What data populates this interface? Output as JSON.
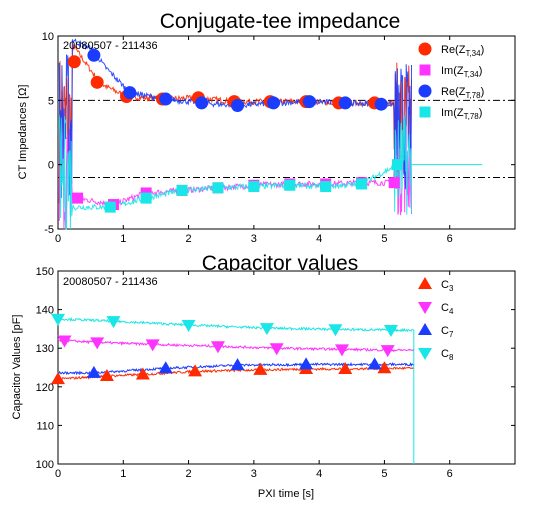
{
  "colors": {
    "red": "#ff2a00",
    "magenta": "#ff33ff",
    "blue": "#1a3cff",
    "cyan": "#19e6e6"
  },
  "chart_data": [
    {
      "type": "line",
      "title": "Conjugate-tee impedance",
      "annotation": "20080507 - 211436",
      "xlabel": "",
      "ylabel": "CT Impedances [Ω]",
      "xlim": [
        0,
        7
      ],
      "ylim": [
        -5,
        10
      ],
      "xticks": [
        "0",
        "1",
        "2",
        "3",
        "4",
        "5",
        "6"
      ],
      "yticks": [
        "-5",
        "0",
        "5",
        "10"
      ],
      "reference_lines": [
        5,
        -1
      ],
      "legend_position": "top-right",
      "series": [
        {
          "name": "Re(Z",
          "sub": "T,34",
          "close": ")",
          "color": "red",
          "marker": "circle",
          "x": [
            0.25,
            0.6,
            1.05,
            1.6,
            2.15,
            2.7,
            3.25,
            3.8,
            4.3,
            4.85
          ],
          "y": [
            8.0,
            6.4,
            5.3,
            5.1,
            5.2,
            4.9,
            4.9,
            4.9,
            4.8,
            4.8
          ]
        },
        {
          "name": "Im(Z",
          "sub": "T,34",
          "close": ")",
          "color": "magenta",
          "marker": "square",
          "x": [
            0.3,
            0.85,
            1.35,
            1.9,
            2.45,
            3.0,
            3.55,
            4.1,
            4.65,
            5.15
          ],
          "y": [
            -2.6,
            -3.1,
            -2.2,
            -2.0,
            -1.8,
            -1.6,
            -1.5,
            -1.5,
            -1.4,
            -1.4
          ]
        },
        {
          "name": "Re(Z",
          "sub": "T,78",
          "close": ")",
          "color": "blue",
          "marker": "circle",
          "x": [
            0.55,
            1.1,
            1.65,
            2.2,
            2.75,
            3.3,
            3.85,
            4.4,
            4.95
          ],
          "y": [
            8.5,
            5.6,
            5.1,
            4.8,
            4.6,
            4.8,
            4.9,
            4.8,
            4.7
          ]
        },
        {
          "name": "Im(Z",
          "sub": "T,78",
          "close": ")",
          "color": "cyan",
          "marker": "square",
          "x": [
            0.8,
            1.35,
            1.9,
            2.45,
            3.0,
            3.55,
            4.1,
            4.65,
            5.2
          ],
          "y": [
            -3.3,
            -2.6,
            -2.0,
            -1.8,
            -1.7,
            -1.6,
            -1.7,
            -1.5,
            0.0
          ]
        }
      ]
    },
    {
      "type": "line",
      "title": "Capacitor values",
      "annotation": "20080507 - 211436",
      "xlabel": "PXI time [s]",
      "ylabel": "Capacitor Values [pF]",
      "xlim": [
        0,
        7
      ],
      "ylim": [
        100,
        150
      ],
      "xticks": [
        "0",
        "1",
        "2",
        "3",
        "4",
        "5",
        "6"
      ],
      "yticks": [
        "100",
        "110",
        "120",
        "130",
        "140",
        "150"
      ],
      "legend_position": "top-right",
      "series": [
        {
          "name": "C",
          "sub": "3",
          "color": "red",
          "marker": "triangle-up",
          "x": [
            0.0,
            0.75,
            1.3,
            2.1,
            3.1,
            3.8,
            4.4,
            5.0
          ],
          "y": [
            122.0,
            122.8,
            123.2,
            124.0,
            124.4,
            124.6,
            124.6,
            124.8
          ]
        },
        {
          "name": "C",
          "sub": "4",
          "color": "magenta",
          "marker": "triangle-down",
          "x": [
            0.1,
            0.6,
            1.45,
            2.45,
            3.35,
            4.35,
            5.05
          ],
          "y": [
            132.0,
            131.5,
            131.0,
            130.5,
            130.0,
            129.7,
            129.5
          ]
        },
        {
          "name": "C",
          "sub": "7",
          "color": "blue",
          "marker": "triangle-up",
          "x": [
            0.55,
            1.65,
            2.75,
            3.8,
            4.85
          ],
          "y": [
            123.6,
            124.8,
            125.6,
            125.8,
            125.8
          ]
        },
        {
          "name": "C",
          "sub": "8",
          "color": "cyan",
          "marker": "triangle-down",
          "x": [
            0.0,
            0.85,
            2.0,
            3.2,
            4.25,
            5.1
          ],
          "y": [
            137.6,
            137.0,
            136.0,
            135.2,
            134.9,
            134.7
          ]
        }
      ]
    }
  ]
}
